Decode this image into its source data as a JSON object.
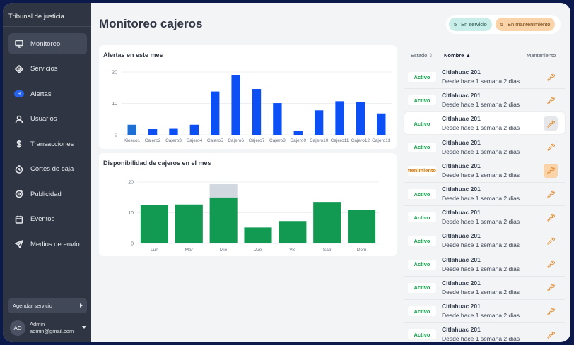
{
  "sidebar": {
    "org": "Tribunal de justicia",
    "items": [
      {
        "label": "Monitoreo",
        "icon": "monitor-icon",
        "active": true
      },
      {
        "label": "Servicios",
        "icon": "network-icon"
      },
      {
        "label": "Alertas",
        "icon": "alert-badge",
        "badge": "9"
      },
      {
        "label": "Usuarios",
        "icon": "user-icon"
      },
      {
        "label": "Transacciones",
        "icon": "dollar-icon"
      },
      {
        "label": "Cortes de caja",
        "icon": "clock-icon"
      },
      {
        "label": "Publicidad",
        "icon": "megaphone-icon"
      },
      {
        "label": "Eventos",
        "icon": "calendar-icon"
      },
      {
        "label": "Medios de envío",
        "icon": "send-icon"
      }
    ],
    "agendar": "Agendar servicio",
    "user": {
      "initials": "AD",
      "name": "Admin",
      "email": "admin@gmail.com"
    }
  },
  "header": {
    "title": "Monitoreo cajeros",
    "en_servicio": {
      "count": "5",
      "label": "En servicio"
    },
    "en_mantenimiento": {
      "count": "5",
      "label": "En mantenimiento"
    }
  },
  "colors": {
    "blue": "#0b4ff5",
    "blue_first": "#1d6fd6",
    "green": "#129a52",
    "grey": "#d1d8e0"
  },
  "chart_data": [
    {
      "type": "bar",
      "title": "Alertas en este mes",
      "categories": [
        "Kiosco1",
        "Cajero2",
        "Cajero3",
        "Cajero4",
        "Cajero5",
        "Cajero6",
        "Cajero7",
        "Cajero8",
        "Cajero9",
        "Cajero10",
        "Cajero11",
        "Cajero12",
        "Cajero13"
      ],
      "values": [
        3.2,
        1.8,
        1.9,
        3.2,
        13.8,
        19,
        14.6,
        10.1,
        1.2,
        7.8,
        10.7,
        10.5,
        6.8
      ],
      "yticks": [
        "0",
        "10",
        "20"
      ],
      "ylim": [
        0,
        20
      ],
      "grid": true
    },
    {
      "type": "bar",
      "title": "Disponibilidad de cajeros en el mes",
      "stacked": true,
      "categories": [
        "Lun",
        "Mar",
        "Mie",
        "Jue",
        "Vie",
        "Sab",
        "Dom"
      ],
      "series": [
        {
          "values": [
            12.5,
            12.7,
            15,
            5.2,
            7.3,
            13.3,
            10.9
          ]
        },
        {
          "values": [
            0,
            0,
            4.3,
            0,
            0,
            0,
            0
          ]
        }
      ],
      "yticks": [
        "0",
        "10",
        "20"
      ],
      "ylim": [
        0,
        20
      ],
      "grid": true
    }
  ],
  "table": {
    "headers": {
      "estado": "Estado",
      "nombre": "Nombre",
      "mantenimiento": "Manteniento"
    },
    "rows": [
      {
        "status": "Activo",
        "name": "Citlahuac 201",
        "sub": "Desde hace 1 semana 2 dias"
      },
      {
        "status": "Activo",
        "name": "Citlahuac 201",
        "sub": "Desde hace 1 semana 2 dias"
      },
      {
        "status": "Activo",
        "name": "Citlahuac 201",
        "sub": "Desde hace 1 semana 2 dias",
        "selected": true
      },
      {
        "status": "Activo",
        "name": "Citlahuac 201",
        "sub": "Desde hace 1 semana 2 dias"
      },
      {
        "status": "Mantenimiento",
        "name": "Citlahuac 201",
        "sub": "Desde hace 1 semana 2 dias",
        "maint": true
      },
      {
        "status": "Activo",
        "name": "Citlahuac 201",
        "sub": "Desde hace 1 semana 2 dias"
      },
      {
        "status": "Activo",
        "name": "Citlahuac 201",
        "sub": "Desde hace 1 semana 2 dias"
      },
      {
        "status": "Activo",
        "name": "Citlahuac 201",
        "sub": "Desde hace 1 semana 2 dias"
      },
      {
        "status": "Activo",
        "name": "Citlahuac 201",
        "sub": "Desde hace 1 semana 2 dias"
      },
      {
        "status": "Activo",
        "name": "Citlahuac 201",
        "sub": "Desde hace 1 semana 2 dias"
      },
      {
        "status": "Activo",
        "name": "Citlahuac 201",
        "sub": "Desde hace 1 semana 2 dias"
      },
      {
        "status": "Activo",
        "name": "Citlahuac 201",
        "sub": "Desde hace 1 semana 2 dias"
      }
    ]
  }
}
